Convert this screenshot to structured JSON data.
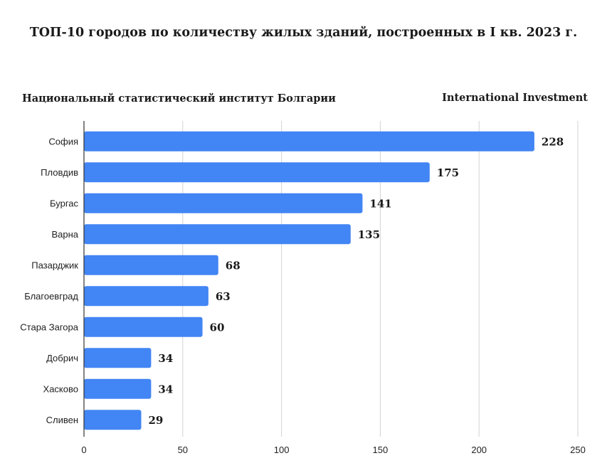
{
  "chart_data": {
    "type": "bar",
    "orientation": "horizontal",
    "title": "ТОП-10 городов по количеству жилых зданий, построенных в I кв. 2023 г.",
    "source_left": "Национальный статистический институт Болгарии",
    "source_right": "International Investment",
    "categories": [
      "София",
      "Пловдив",
      "Бургас",
      "Варна",
      "Пазарджик",
      "Благоевград",
      "Стара Загора",
      "Добрич",
      "Хасково",
      "Сливен"
    ],
    "values": [
      228,
      175,
      141,
      135,
      68,
      63,
      60,
      34,
      34,
      29
    ],
    "xlim": [
      0,
      250
    ],
    "xticks": [
      0,
      50,
      100,
      150,
      200,
      250
    ],
    "grid": "vertical",
    "bar_color": "#4285f4"
  }
}
